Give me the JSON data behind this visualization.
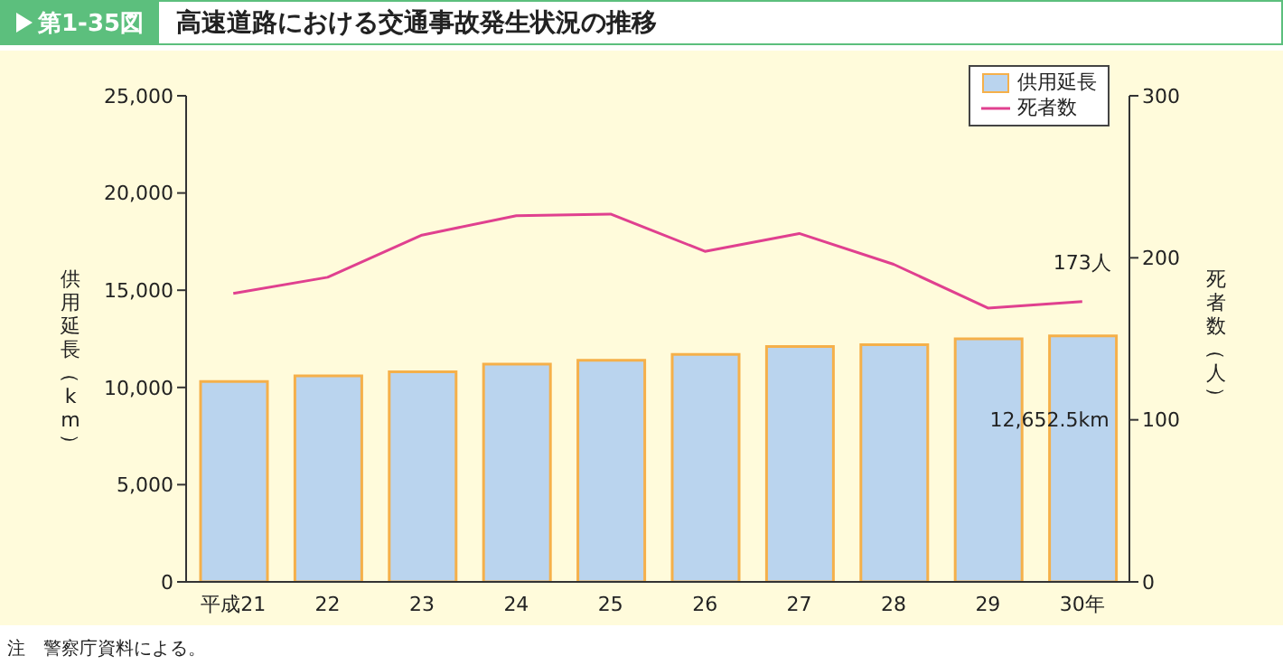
{
  "chart_data": {
    "type": "bar",
    "title": "高速道路における交通事故発生状況の推移",
    "annotations": [
      "第1-35図",
      "注　警察庁資料による。"
    ],
    "ylabel": "供用延長（km）",
    "y2label": "死者数（人）",
    "categories": [
      "平成21",
      "22",
      "23",
      "24",
      "25",
      "26",
      "27",
      "28",
      "29",
      "30年"
    ],
    "series": [
      {
        "name": "供用延長",
        "color": "#bad4ee",
        "values": [
          10300,
          10600,
          10800,
          11200,
          11400,
          11700,
          12100,
          12200,
          12500,
          12652.5
        ],
        "value_labels": [
          null,
          null,
          null,
          null,
          null,
          null,
          null,
          null,
          null,
          "12,652.5km"
        ]
      },
      {
        "name": "死者数",
        "type": "line",
        "axis": "y2",
        "color": "#e0408f",
        "values": [
          178,
          188,
          214,
          226,
          227,
          204,
          215,
          196,
          169,
          173
        ],
        "value_labels": [
          null,
          null,
          null,
          null,
          null,
          null,
          null,
          null,
          null,
          "173人"
        ]
      }
    ],
    "ylim": [
      0,
      25000
    ],
    "yticks": [
      0,
      {
        "value": 5000,
        "label": "5,000"
      },
      {
        "value": 10000,
        "label": "10,000"
      },
      {
        "value": 15000,
        "label": "15,000"
      },
      {
        "value": 20000,
        "label": "20,000"
      },
      {
        "value": 25000,
        "label": "25,000"
      }
    ],
    "y2lim": [
      0,
      300
    ],
    "y2ticks": [
      0,
      100,
      200,
      300
    ],
    "grid": false,
    "legend": "top right",
    "marker": "none"
  }
}
